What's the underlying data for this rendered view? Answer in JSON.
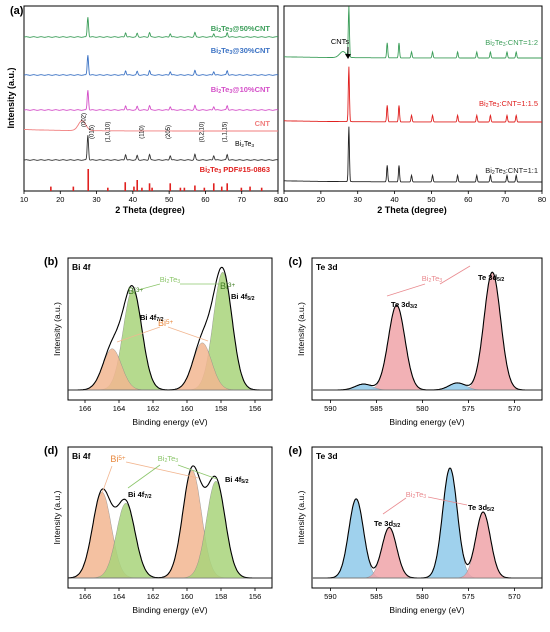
{
  "chart_data": [
    {
      "type": "line",
      "panel": "(a)",
      "xlabel": "2 Theta (degree)",
      "ylabel": "Intensity (a.u.)",
      "xlim": [
        10,
        80
      ],
      "x_ticks": [
        "10",
        "20",
        "30",
        "40",
        "50",
        "60",
        "70",
        "80"
      ],
      "series": [
        {
          "name": "Bi2Te3@50%CNT",
          "color": "#3c9e5a",
          "peaks": [
            27.6,
            38.0,
            41.2,
            44.6,
            50.3,
            57.1,
            62.3,
            66.0
          ]
        },
        {
          "name": "Bi2Te3@30%CNT",
          "color": "#3b72c4",
          "peaks": [
            27.6,
            38.0,
            41.2,
            44.6,
            50.3,
            57.1,
            62.3,
            66.0
          ]
        },
        {
          "name": "Bi2Te3@10%CNT",
          "color": "#d44fc8",
          "peaks": [
            27.6,
            38.0,
            41.2,
            44.6,
            50.3,
            57.1,
            62.3,
            66.0
          ]
        },
        {
          "name": "CNT",
          "color": "#f07e7e",
          "peaks": [
            26.0
          ]
        },
        {
          "name": "Bi2Te3",
          "color": "#333333",
          "peaks": [
            27.6,
            38.0,
            41.2,
            44.6,
            50.3,
            57.1,
            62.3,
            66.0
          ]
        }
      ],
      "reference": {
        "name": "Bi2Te3 PDF#15-0863",
        "color": "#e0201f",
        "sticks": [
          [
            17.4,
            0.2
          ],
          [
            23.6,
            0.2
          ],
          [
            27.7,
            1.0
          ],
          [
            33.1,
            0.15
          ],
          [
            37.9,
            0.4
          ],
          [
            40.3,
            0.2
          ],
          [
            41.2,
            0.5
          ],
          [
            42.5,
            0.15
          ],
          [
            44.6,
            0.35
          ],
          [
            45.3,
            0.15
          ],
          [
            50.3,
            0.35
          ],
          [
            53.1,
            0.15
          ],
          [
            54.2,
            0.15
          ],
          [
            57.1,
            0.25
          ],
          [
            59.7,
            0.15
          ],
          [
            62.3,
            0.35
          ],
          [
            64.5,
            0.2
          ],
          [
            66.0,
            0.35
          ],
          [
            69.9,
            0.15
          ],
          [
            72.3,
            0.2
          ],
          [
            75.5,
            0.15
          ]
        ]
      },
      "annotations": [
        "(002)",
        "(015)",
        "(1,0,10)",
        "(110)",
        "(205)",
        "(0,2,10)",
        "(1,1,15)"
      ],
      "label_bi2te3": "Bi2Te3"
    },
    {
      "type": "line",
      "xlabel": "2 Theta (degree)",
      "xlim": [
        10,
        80
      ],
      "x_ticks": [
        "10",
        "20",
        "30",
        "40",
        "50",
        "60",
        "70",
        "80"
      ],
      "series": [
        {
          "name": "Bi2Te3:CNT=1:2",
          "color": "#3c9e5a"
        },
        {
          "name": "Bi2Te3:CNT=1:1.5",
          "color": "#e0201f"
        },
        {
          "name": "Bi2Te3:CNT=1:1",
          "color": "#222222"
        }
      ],
      "annotations": [
        "CNTs"
      ]
    },
    {
      "type": "area",
      "panel": "(b)",
      "title": "Bi 4f",
      "xlabel": "Binding energy (eV)",
      "ylabel": "Intensity (a.u.)",
      "xlim": [
        167,
        155
      ],
      "x_ticks": [
        "166",
        "164",
        "162",
        "160",
        "158",
        "156"
      ],
      "components": [
        {
          "name": "Bi3+ 4f7/2",
          "center": 163.2,
          "height": 0.85,
          "color": "#a8d37a"
        },
        {
          "name": "Bi3+ 4f5/2",
          "center": 157.9,
          "height": 1.0,
          "color": "#a8d37a"
        },
        {
          "name": "Bi5+ 4f7/2",
          "center": 164.4,
          "height": 0.35,
          "color": "#f2b690"
        },
        {
          "name": "Bi5+ 4f5/2",
          "center": 159.1,
          "height": 0.4,
          "color": "#f2b690"
        }
      ],
      "labels": {
        "bi2te3": "Bi2Te3",
        "bi3_left": "Bi3+",
        "bi3_right": "Bi3+",
        "bi5": "Bi5+",
        "peak1": "Bi 4f7/2",
        "peak2": "Bi 4f5/2"
      }
    },
    {
      "type": "area",
      "panel": "(c)",
      "title": "Te 3d",
      "xlabel": "Binding energy (eV)",
      "ylabel": "Intensity (a.u.)",
      "xlim": [
        592,
        567
      ],
      "x_ticks": [
        "590",
        "585",
        "580",
        "575",
        "570"
      ],
      "components": [
        {
          "name": "Te 3d3/2",
          "center": 582.8,
          "height": 0.72,
          "color": "#f0a3a8"
        },
        {
          "name": "Te 3d5/2",
          "center": 572.4,
          "height": 1.0,
          "color": "#f0a3a8"
        },
        {
          "name": "TeO2 3d3/2",
          "center": 586.4,
          "height": 0.05,
          "color": "#8ec9ea"
        },
        {
          "name": "TeO2 3d5/2",
          "center": 576.2,
          "height": 0.06,
          "color": "#8ec9ea"
        }
      ],
      "labels": {
        "bi2te3": "Bi2Te3",
        "peak1": "Te 3d3/2",
        "peak2": "Te 3d5/2"
      }
    },
    {
      "type": "area",
      "panel": "(d)",
      "title": "Bi 4f",
      "xlabel": "Binding energy (eV)",
      "ylabel": "Intensity (a.u.)",
      "xlim": [
        167,
        155
      ],
      "x_ticks": [
        "166",
        "164",
        "162",
        "160",
        "158",
        "156"
      ],
      "components": [
        {
          "name": "Bi5+ 4f7/2",
          "center": 165.0,
          "height": 0.78,
          "color": "#f2b690"
        },
        {
          "name": "Bi3+ 4f7/2",
          "center": 163.6,
          "height": 0.68,
          "color": "#a8d37a"
        },
        {
          "name": "Bi5+ 4f5/2",
          "center": 159.7,
          "height": 0.98,
          "color": "#f2b690"
        },
        {
          "name": "Bi3+ 4f5/2",
          "center": 158.3,
          "height": 0.88,
          "color": "#a8d37a"
        }
      ],
      "labels": {
        "bi5": "Bi5+",
        "bi2te3": "Bi2Te3",
        "peak1": "Bi 4f7/2",
        "peak2": "Bi 4f5/2"
      }
    },
    {
      "type": "area",
      "panel": "(e)",
      "title": "Te 3d",
      "xlabel": "Binding energy (eV)",
      "ylabel": "Intensity (a.u.)",
      "xlim": [
        592,
        567
      ],
      "x_ticks": [
        "590",
        "585",
        "580",
        "575",
        "570"
      ],
      "components": [
        {
          "name": "TeO2 3d3/2",
          "center": 587.2,
          "height": 0.72,
          "color": "#8ec9ea"
        },
        {
          "name": "Te 3d3/2",
          "center": 583.6,
          "height": 0.46,
          "color": "#f0a3a8"
        },
        {
          "name": "TeO2 3d5/2",
          "center": 577.0,
          "height": 1.0,
          "color": "#8ec9ea"
        },
        {
          "name": "Te 3d5/2",
          "center": 573.4,
          "height": 0.6,
          "color": "#f0a3a8"
        }
      ],
      "labels": {
        "bi2te3": "Bi2Te3",
        "peak1": "Te 3d3/2",
        "peak2": "Te 3d5/2"
      }
    }
  ]
}
